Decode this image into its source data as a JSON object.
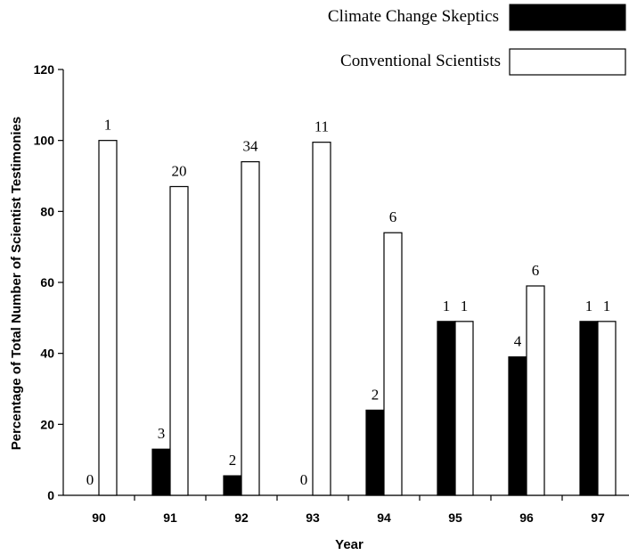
{
  "chart_data": {
    "type": "bar",
    "title": "",
    "xlabel": "Year",
    "ylabel": "Percentage of Total Number of Scientist Testimonies",
    "ylim": [
      0,
      120
    ],
    "yticks": [
      "0",
      "20",
      "40",
      "60",
      "80",
      "100",
      "120"
    ],
    "categories": [
      "90",
      "91",
      "92",
      "93",
      "94",
      "95",
      "96",
      "97"
    ],
    "series": [
      {
        "name": "Climate Change Skeptics",
        "color": "#000000",
        "values": [
          0,
          13,
          5.5,
          0,
          24,
          49,
          39,
          49
        ],
        "labels": [
          "0",
          "3",
          "2",
          "0",
          "2",
          "1",
          "4",
          "1"
        ]
      },
      {
        "name": "Conventional Scientists",
        "color": "#ffffff",
        "values": [
          100,
          87,
          94,
          99.5,
          74,
          49,
          59,
          49
        ],
        "labels": [
          "1",
          "20",
          "34",
          "11",
          "6",
          "1",
          "6",
          "1"
        ]
      }
    ],
    "legend_position": "top-right",
    "grid": false
  }
}
